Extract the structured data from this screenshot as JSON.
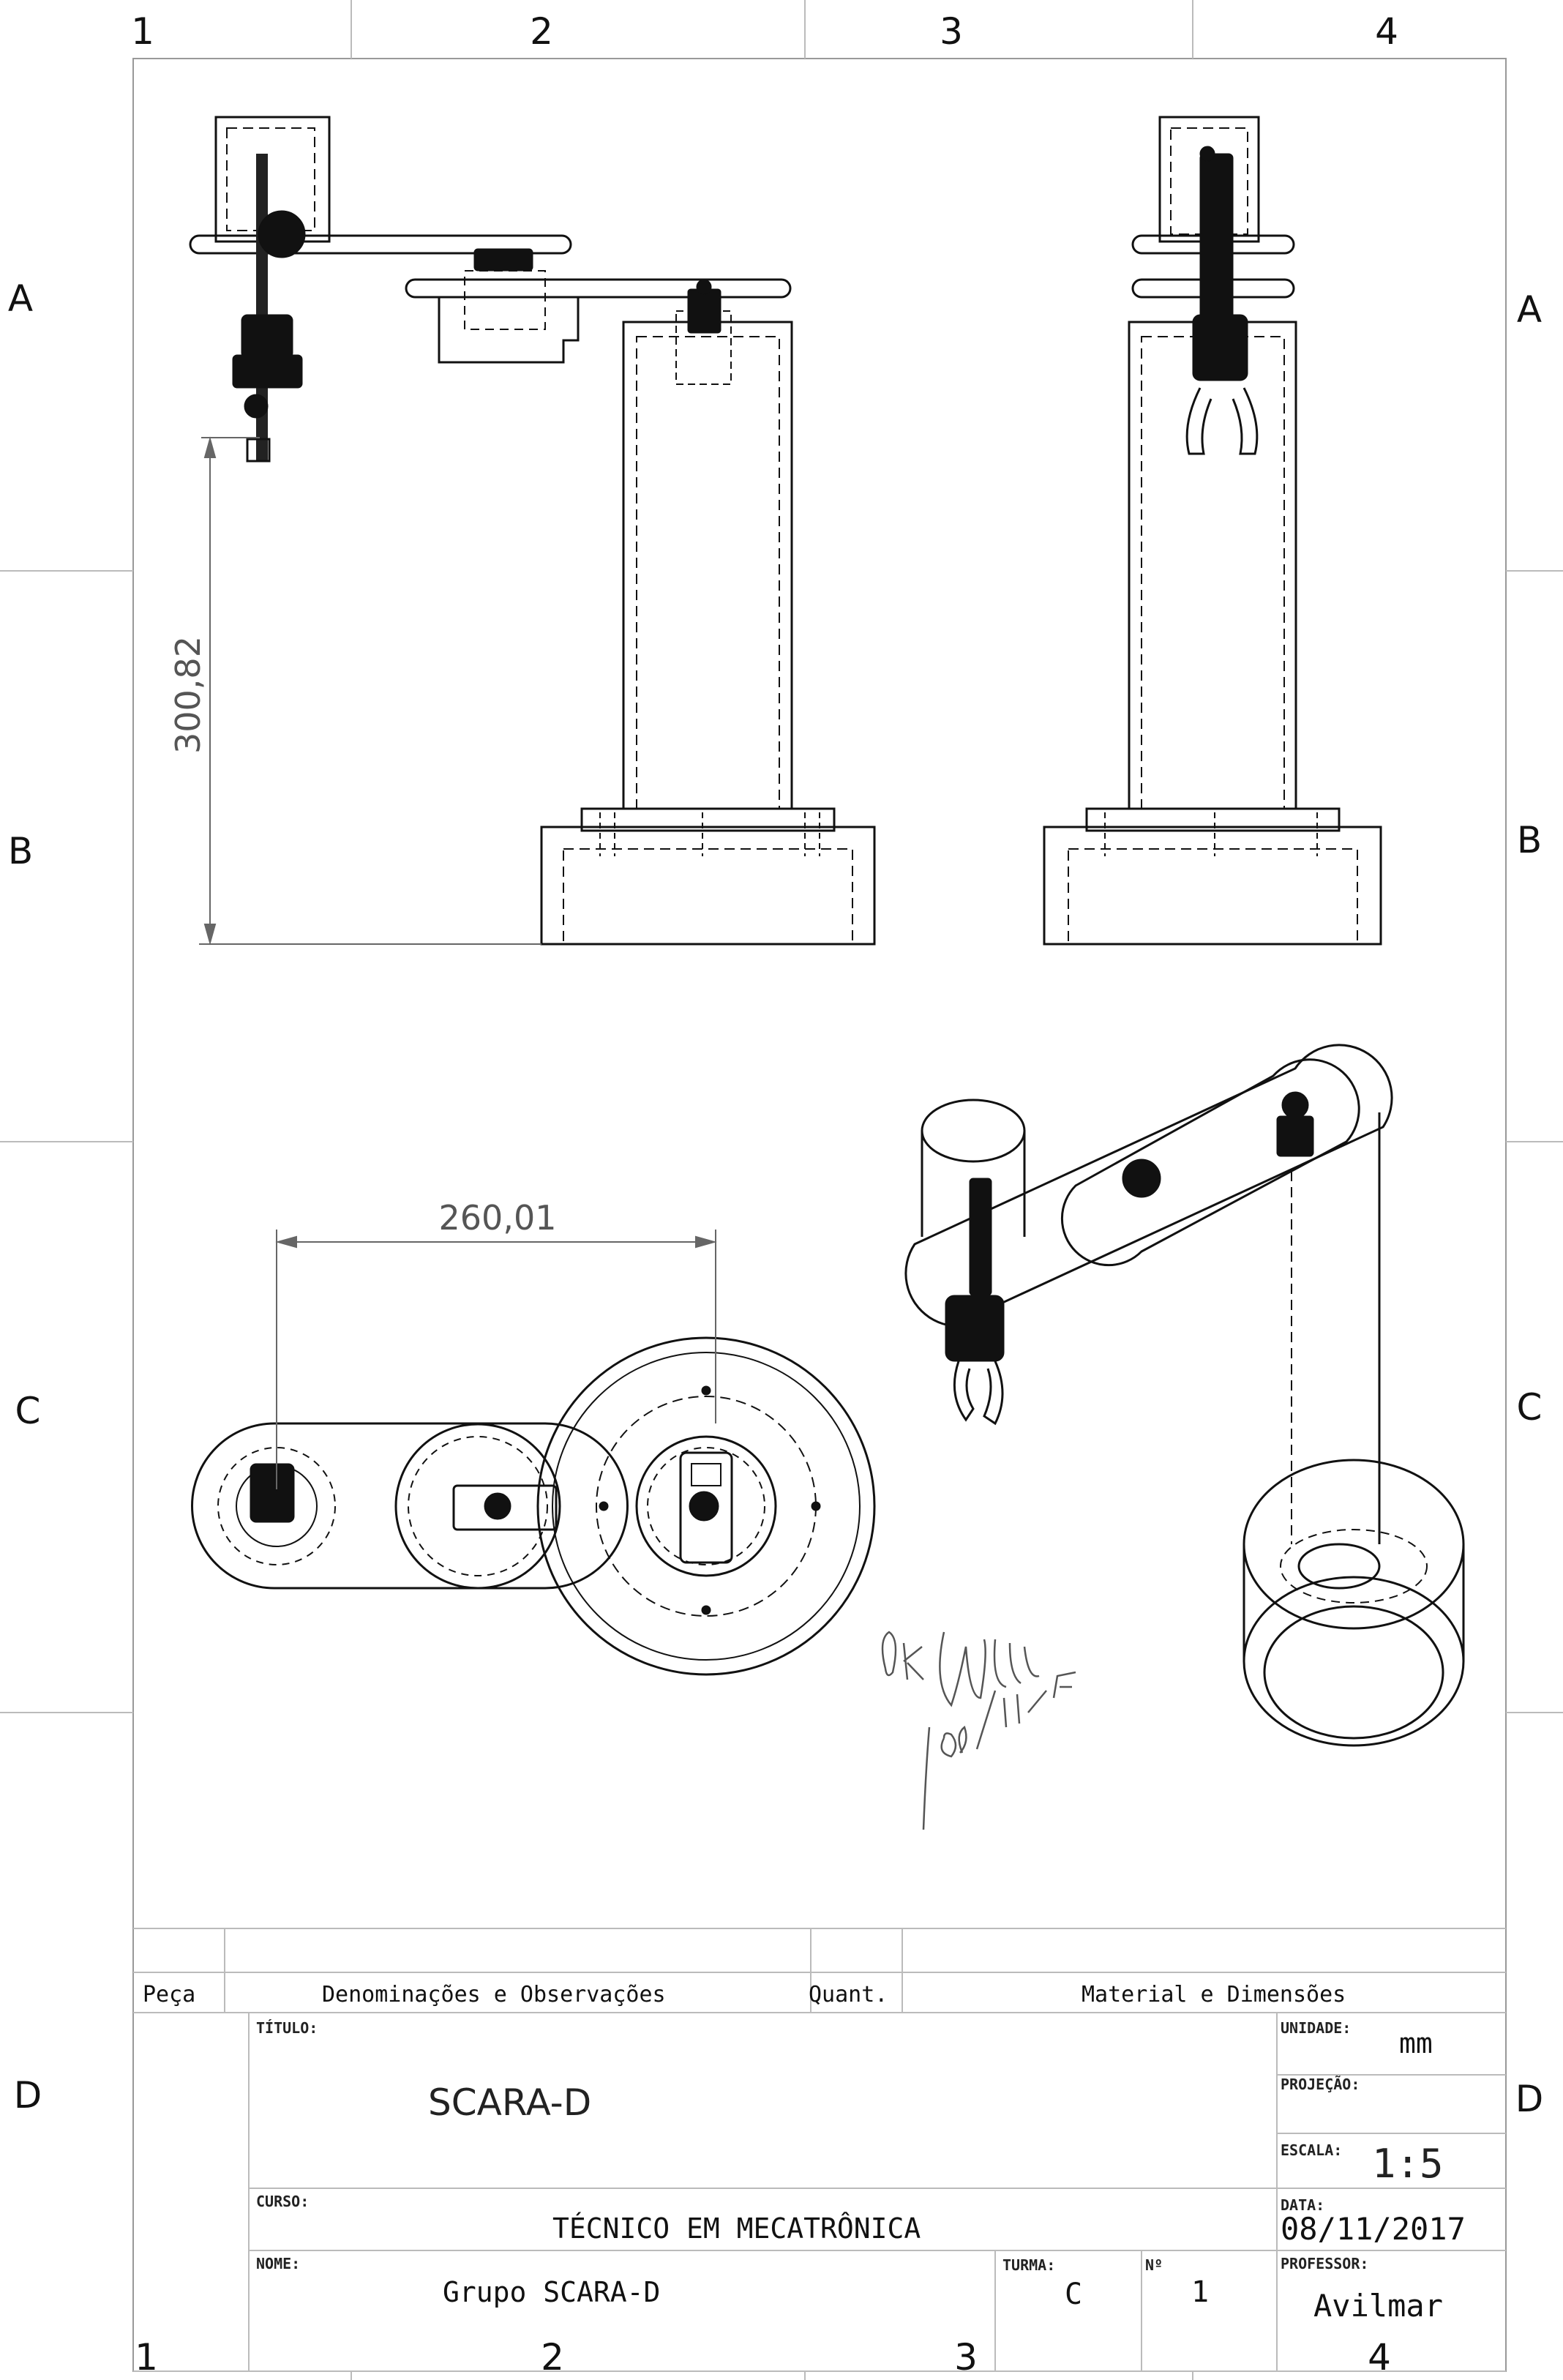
{
  "zones": {
    "columns": [
      "1",
      "2",
      "3",
      "4"
    ],
    "rows": [
      "A",
      "B",
      "C",
      "D"
    ]
  },
  "dimensions": {
    "height": "300,82",
    "width": "260,01"
  },
  "parts_list": {
    "peca_label": "Peça",
    "denominacoes_label": "Denominações e Observações",
    "quant_label": "Quant.",
    "material_label": "Material e Dimensões"
  },
  "title_block": {
    "titulo_label": "TÍTULO:",
    "titulo_value": "SCARA-D",
    "curso_label": "CURSO:",
    "curso_value": "TÉCNICO EM MECATRÔNICA",
    "nome_label": "NOME:",
    "nome_value": "Grupo SCARA-D",
    "turma_label": "TURMA:",
    "turma_value": "C",
    "numero_label": "Nº",
    "numero_value": "1",
    "unidade_label": "UNIDADE:",
    "unidade_value": "mm",
    "projecao_label": "PROJEÇÃO:",
    "escala_label": "ESCALA:",
    "escala_value": "1:5",
    "data_label": "DATA:",
    "data_value": "08/11/2017",
    "professor_label": "PROFESSOR:",
    "professor_value": "Avilmar"
  },
  "signature": {
    "text": "OK 09/11/17"
  },
  "colors": {
    "line": "#111111",
    "dimension": "#666666",
    "grid": "#cccccc"
  }
}
